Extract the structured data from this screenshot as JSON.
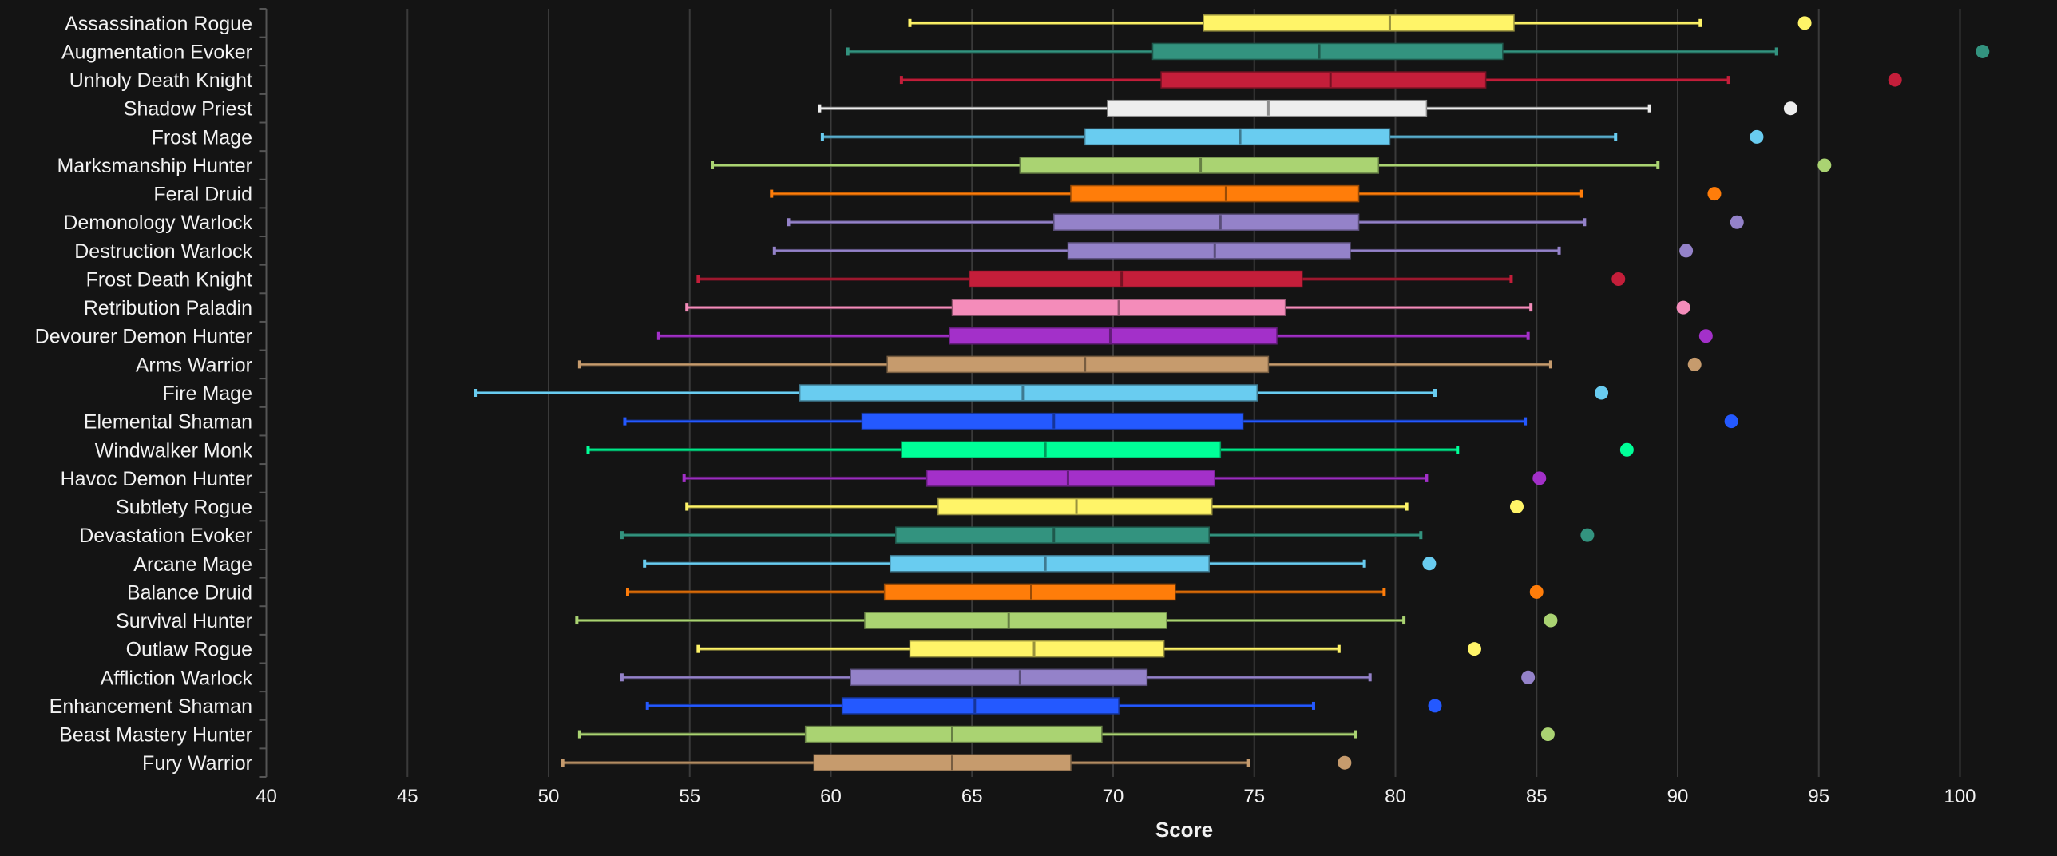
{
  "chart_data": {
    "type": "boxplot",
    "title": "",
    "xlabel": "Score",
    "ylabel": "",
    "xlim": [
      40,
      103.4
    ],
    "xticks": [
      "40",
      "45",
      "50",
      "55",
      "60",
      "65",
      "70",
      "75",
      "80",
      "85",
      "90",
      "95",
      "100"
    ],
    "grid": true,
    "background": "#141414",
    "series": [
      {
        "name": "Assassination Rogue",
        "color": "#FFF468",
        "low": 62.8,
        "q1": 73.2,
        "median": 79.8,
        "q3": 84.2,
        "high": 90.8,
        "point": 94.5
      },
      {
        "name": "Augmentation Evoker",
        "color": "#33937F",
        "low": 60.6,
        "q1": 71.4,
        "median": 77.3,
        "q3": 83.8,
        "high": 93.5,
        "point": 100.8
      },
      {
        "name": "Unholy Death Knight",
        "color": "#C41E3A",
        "low": 62.5,
        "q1": 71.7,
        "median": 77.7,
        "q3": 83.2,
        "high": 91.8,
        "point": 97.7
      },
      {
        "name": "Shadow Priest",
        "color": "#EDEDED",
        "low": 59.6,
        "q1": 69.8,
        "median": 75.5,
        "q3": 81.1,
        "high": 89.0,
        "point": 94.0
      },
      {
        "name": "Frost Mage",
        "color": "#69CCF0",
        "low": 59.7,
        "q1": 69.0,
        "median": 74.5,
        "q3": 79.8,
        "high": 87.8,
        "point": 92.8
      },
      {
        "name": "Marksmanship Hunter",
        "color": "#AAD372",
        "low": 55.8,
        "q1": 66.7,
        "median": 73.1,
        "q3": 79.4,
        "high": 89.3,
        "point": 95.2
      },
      {
        "name": "Feral Druid",
        "color": "#FF7D0A",
        "low": 57.9,
        "q1": 68.5,
        "median": 74.0,
        "q3": 78.7,
        "high": 86.6,
        "point": 91.3
      },
      {
        "name": "Demonology Warlock",
        "color": "#9482C9",
        "low": 58.5,
        "q1": 67.9,
        "median": 73.8,
        "q3": 78.7,
        "high": 86.7,
        "point": 92.1
      },
      {
        "name": "Destruction Warlock",
        "color": "#9482C9",
        "low": 58.0,
        "q1": 68.4,
        "median": 73.6,
        "q3": 78.4,
        "high": 85.8,
        "point": 90.3
      },
      {
        "name": "Frost Death Knight",
        "color": "#C41E3A",
        "low": 55.3,
        "q1": 64.9,
        "median": 70.3,
        "q3": 76.7,
        "high": 84.1,
        "point": 87.9
      },
      {
        "name": "Retribution Paladin",
        "color": "#F48CBA",
        "low": 54.9,
        "q1": 64.3,
        "median": 70.2,
        "q3": 76.1,
        "high": 84.8,
        "point": 90.2
      },
      {
        "name": "Devourer Demon Hunter",
        "color": "#A330C9",
        "low": 53.9,
        "q1": 64.2,
        "median": 69.9,
        "q3": 75.8,
        "high": 84.7,
        "point": 91.0
      },
      {
        "name": "Arms Warrior",
        "color": "#C69B6D",
        "low": 51.1,
        "q1": 62.0,
        "median": 69.0,
        "q3": 75.5,
        "high": 85.5,
        "point": 90.6
      },
      {
        "name": "Fire Mage",
        "color": "#69CCF0",
        "low": 47.4,
        "q1": 58.9,
        "median": 66.8,
        "q3": 75.1,
        "high": 81.4,
        "point": 87.3
      },
      {
        "name": "Elemental Shaman",
        "color": "#2459FF",
        "low": 52.7,
        "q1": 61.1,
        "median": 67.9,
        "q3": 74.6,
        "high": 84.6,
        "point": 91.9
      },
      {
        "name": "Windwalker Monk",
        "color": "#00FF98",
        "low": 51.4,
        "q1": 62.5,
        "median": 67.6,
        "q3": 73.8,
        "high": 82.2,
        "point": 88.2
      },
      {
        "name": "Havoc Demon Hunter",
        "color": "#A330C9",
        "low": 54.8,
        "q1": 63.4,
        "median": 68.4,
        "q3": 73.6,
        "high": 81.1,
        "point": 85.1
      },
      {
        "name": "Subtlety Rogue",
        "color": "#FFF468",
        "low": 54.9,
        "q1": 63.8,
        "median": 68.7,
        "q3": 73.5,
        "high": 80.4,
        "point": 84.3
      },
      {
        "name": "Devastation Evoker",
        "color": "#33937F",
        "low": 52.6,
        "q1": 62.3,
        "median": 67.9,
        "q3": 73.4,
        "high": 80.9,
        "point": 86.8
      },
      {
        "name": "Arcane Mage",
        "color": "#69CCF0",
        "low": 53.4,
        "q1": 62.1,
        "median": 67.6,
        "q3": 73.4,
        "high": 78.9,
        "point": 81.2
      },
      {
        "name": "Balance Druid",
        "color": "#FF7D0A",
        "low": 52.8,
        "q1": 61.9,
        "median": 67.1,
        "q3": 72.2,
        "high": 79.6,
        "point": 85.0
      },
      {
        "name": "Survival Hunter",
        "color": "#AAD372",
        "low": 51.0,
        "q1": 61.2,
        "median": 66.3,
        "q3": 71.9,
        "high": 80.3,
        "point": 85.5
      },
      {
        "name": "Outlaw Rogue",
        "color": "#FFF468",
        "low": 55.3,
        "q1": 62.8,
        "median": 67.2,
        "q3": 71.8,
        "high": 78.0,
        "point": 82.8
      },
      {
        "name": "Affliction Warlock",
        "color": "#9482C9",
        "low": 52.6,
        "q1": 60.7,
        "median": 66.7,
        "q3": 71.2,
        "high": 79.1,
        "point": 84.7
      },
      {
        "name": "Enhancement Shaman",
        "color": "#2459FF",
        "low": 53.5,
        "q1": 60.4,
        "median": 65.1,
        "q3": 70.2,
        "high": 77.1,
        "point": 81.4
      },
      {
        "name": "Beast Mastery Hunter",
        "color": "#AAD372",
        "low": 51.1,
        "q1": 59.1,
        "median": 64.3,
        "q3": 69.6,
        "high": 78.6,
        "point": 85.4
      },
      {
        "name": "Fury Warrior",
        "color": "#C69B6D",
        "low": 50.5,
        "q1": 59.4,
        "median": 64.3,
        "q3": 68.5,
        "high": 74.8,
        "point": 78.2
      }
    ]
  }
}
